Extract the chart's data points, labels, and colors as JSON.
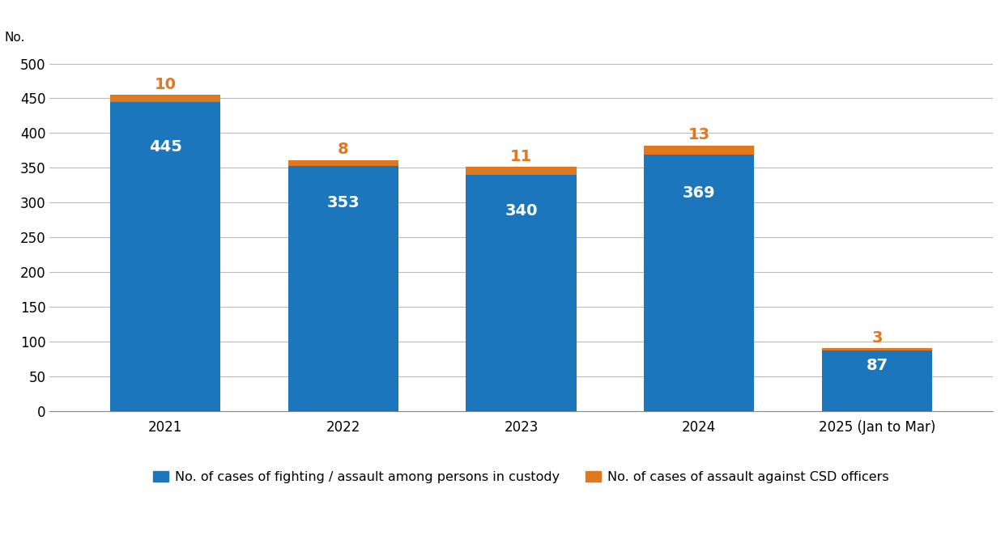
{
  "categories": [
    "2021",
    "2022",
    "2023",
    "2024",
    "2025 (Jan to Mar)"
  ],
  "blue_values": [
    445,
    353,
    340,
    369,
    87
  ],
  "orange_values": [
    10,
    8,
    11,
    13,
    3
  ],
  "blue_color": "#1B76BC",
  "orange_color": "#E07820",
  "blue_label": "No. of cases of fighting / assault among persons in custody",
  "orange_label": "No. of cases of assault against CSD officers",
  "ylabel": "No.",
  "ylim": [
    0,
    520
  ],
  "yticks": [
    0,
    50,
    100,
    150,
    200,
    250,
    300,
    350,
    400,
    450,
    500
  ],
  "blue_label_fontsize": 11.5,
  "bar_value_fontsize": 14,
  "tick_fontsize": 12,
  "ylabel_fontsize": 11,
  "bar_width": 0.62,
  "background_color": "#ffffff",
  "grid_color": "#bbbbbb",
  "orange_annot_color": "#E07820",
  "white_text": "#ffffff"
}
